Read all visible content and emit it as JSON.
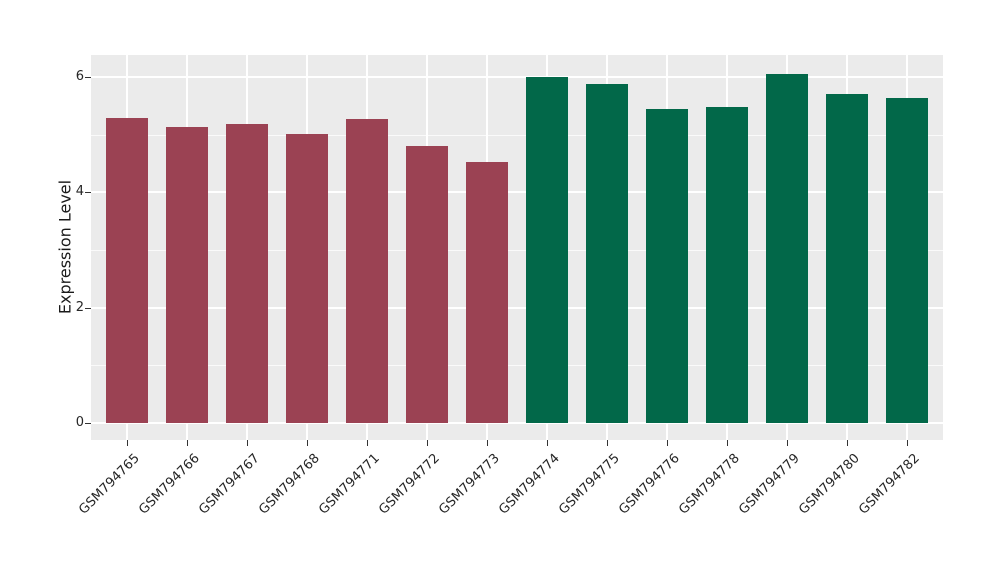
{
  "chart_data": {
    "type": "bar",
    "title": "",
    "xlabel": "",
    "ylabel": "Expression Level",
    "categories": [
      "GSM794765",
      "GSM794766",
      "GSM794767",
      "GSM794768",
      "GSM794771",
      "GSM794772",
      "GSM794773",
      "GSM794774",
      "GSM794775",
      "GSM794776",
      "GSM794778",
      "GSM794779",
      "GSM794780",
      "GSM794782"
    ],
    "values": [
      5.29,
      5.13,
      5.18,
      5.01,
      5.27,
      4.8,
      4.52,
      6.0,
      5.87,
      5.44,
      5.48,
      6.05,
      5.7,
      5.63
    ],
    "bar_groups": [
      "group1",
      "group1",
      "group1",
      "group1",
      "group1",
      "group1",
      "group1",
      "group2",
      "group2",
      "group2",
      "group2",
      "group2",
      "group2",
      "group2"
    ],
    "group_colors": {
      "group1": "#9B4253",
      "group2": "#026849"
    },
    "ylim": [
      -0.29,
      6.38
    ],
    "yticks": [
      0,
      2,
      4,
      6
    ],
    "yticks_minor": [
      1,
      3,
      5
    ],
    "grid": "white major+minor horizontal, white vertical at category centers, on gray panel",
    "legend_position": "none",
    "x_tick_rotation_deg": 45
  },
  "colors": {
    "panel_background": "#EBEBEB",
    "figure_background": "#FFFFFF",
    "gridline": "#FFFFFF",
    "tick_mark": "#333333",
    "axis_text": "#262626",
    "axis_title": "#1A1A1A"
  }
}
